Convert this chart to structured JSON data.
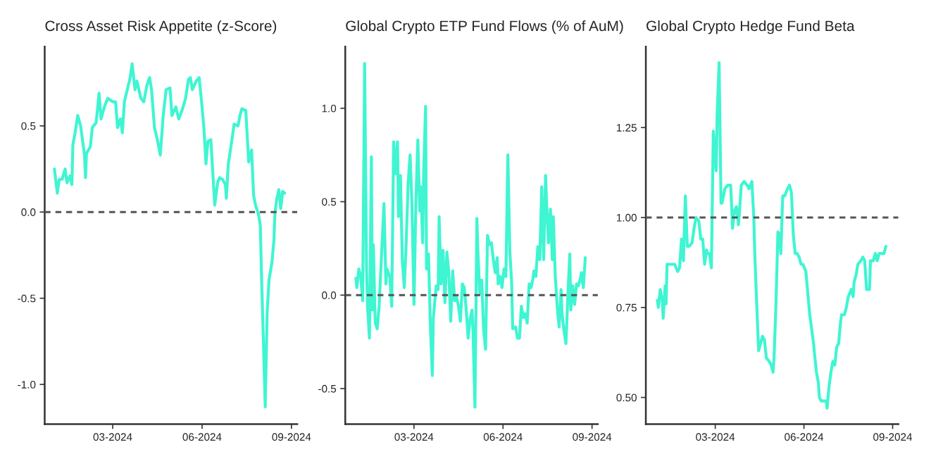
{
  "chart_data": [
    {
      "type": "line",
      "title": "Cross Asset Risk Appetite (z-Score)",
      "grid": false,
      "line_style": "solid",
      "marker": "none",
      "xlim": [
        "2023-12-22",
        "2024-09-07"
      ],
      "xticks": [
        {
          "value": "2024-03-01",
          "label": "03-2024"
        },
        {
          "value": "2024-06-01",
          "label": "06-2024"
        },
        {
          "value": "2024-09-01",
          "label": "09-2024"
        }
      ],
      "ylim": [
        -1.23,
        0.96
      ],
      "yticks": [
        {
          "value": -1.0,
          "label": "-1.0"
        },
        {
          "value": -0.5,
          "label": "-0.5"
        },
        {
          "value": 0.0,
          "label": "0.0"
        },
        {
          "value": 0.5,
          "label": "0.5"
        }
      ],
      "ref_lines": [
        {
          "axis": "y",
          "value": 0.0,
          "color": "#555555",
          "line_style": "dashed"
        }
      ],
      "x": [
        "2024-01-01",
        "2024-01-04",
        "2024-01-06",
        "2024-01-09",
        "2024-01-12",
        "2024-01-14",
        "2024-01-17",
        "2024-01-19",
        "2024-01-20",
        "2024-01-22",
        "2024-01-25",
        "2024-01-28",
        "2024-02-01",
        "2024-02-02",
        "2024-02-03",
        "2024-02-07",
        "2024-02-09",
        "2024-02-13",
        "2024-02-16",
        "2024-02-18",
        "2024-02-22",
        "2024-02-25",
        "2024-03-01",
        "2024-03-04",
        "2024-03-06",
        "2024-03-09",
        "2024-03-11",
        "2024-03-13",
        "2024-03-16",
        "2024-03-19",
        "2024-03-21",
        "2024-03-24",
        "2024-03-26",
        "2024-03-30",
        "2024-04-02",
        "2024-04-05",
        "2024-04-08",
        "2024-04-10",
        "2024-04-13",
        "2024-04-16",
        "2024-04-19",
        "2024-04-22",
        "2024-04-25",
        "2024-04-29",
        "2024-05-01",
        "2024-05-05",
        "2024-05-08",
        "2024-05-12",
        "2024-05-15",
        "2024-05-18",
        "2024-05-20",
        "2024-05-22",
        "2024-05-26",
        "2024-05-29",
        "2024-06-01",
        "2024-06-03",
        "2024-06-05",
        "2024-06-07",
        "2024-06-10",
        "2024-06-11",
        "2024-06-14",
        "2024-06-17",
        "2024-06-19",
        "2024-06-22",
        "2024-06-25",
        "2024-06-26",
        "2024-06-28",
        "2024-07-01",
        "2024-07-04",
        "2024-07-08",
        "2024-07-10",
        "2024-07-12",
        "2024-07-16",
        "2024-07-19",
        "2024-07-22",
        "2024-07-24",
        "2024-07-26",
        "2024-07-29",
        "2024-07-31",
        "2024-08-01",
        "2024-08-03",
        "2024-08-05",
        "2024-08-07",
        "2024-08-09",
        "2024-08-12",
        "2024-08-14",
        "2024-08-15",
        "2024-08-17",
        "2024-08-19",
        "2024-08-21",
        "2024-08-23",
        "2024-08-25"
      ],
      "series": [
        {
          "color": "#3ff5d2",
          "values": [
            0.25,
            0.11,
            0.19,
            0.19,
            0.25,
            0.17,
            0.21,
            0.16,
            0.39,
            0.45,
            0.56,
            0.5,
            0.33,
            0.2,
            0.34,
            0.38,
            0.49,
            0.52,
            0.69,
            0.54,
            0.62,
            0.66,
            0.64,
            0.64,
            0.49,
            0.54,
            0.46,
            0.64,
            0.71,
            0.78,
            0.86,
            0.71,
            0.76,
            0.66,
            0.64,
            0.73,
            0.78,
            0.71,
            0.49,
            0.42,
            0.33,
            0.56,
            0.71,
            0.72,
            0.56,
            0.61,
            0.54,
            0.6,
            0.66,
            0.77,
            0.78,
            0.71,
            0.76,
            0.78,
            0.61,
            0.48,
            0.28,
            0.41,
            0.42,
            0.33,
            0.04,
            0.17,
            0.2,
            0.19,
            0.16,
            0.08,
            0.28,
            0.39,
            0.51,
            0.5,
            0.56,
            0.6,
            0.59,
            0.29,
            0.36,
            0.1,
            0.04,
            -0.01,
            -0.08,
            -0.33,
            -0.72,
            -1.13,
            -0.58,
            -0.39,
            -0.29,
            -0.16,
            -0.01,
            0.08,
            0.13,
            0.02,
            0.12,
            0.11
          ]
        }
      ]
    },
    {
      "type": "line",
      "title": "Global Crypto ETP Fund Flows (% of AuM)",
      "grid": false,
      "line_style": "solid",
      "marker": "none",
      "xlim": [
        "2023-12-21",
        "2024-09-07"
      ],
      "xticks": [
        {
          "value": "2024-03-01",
          "label": "03-2024"
        },
        {
          "value": "2024-06-01",
          "label": "06-2024"
        },
        {
          "value": "2024-09-01",
          "label": "09-2024"
        }
      ],
      "ylim": [
        -0.69,
        1.33
      ],
      "yticks": [
        {
          "value": -0.5,
          "label": "-0.5"
        },
        {
          "value": 0.0,
          "label": "0.0"
        },
        {
          "value": 0.5,
          "label": "0.5"
        },
        {
          "value": 1.0,
          "label": "1.0"
        }
      ],
      "ref_lines": [
        {
          "axis": "y",
          "value": 0.0,
          "color": "#555555",
          "line_style": "dashed"
        }
      ],
      "x": [
        "2024-01-01",
        "2024-01-02",
        "2024-01-04",
        "2024-01-06",
        "2024-01-08",
        "2024-01-10",
        "2024-01-12",
        "2024-01-13",
        "2024-01-15",
        "2024-01-17",
        "2024-01-18",
        "2024-01-19",
        "2024-01-21",
        "2024-01-23",
        "2024-01-25",
        "2024-01-28",
        "2024-01-30",
        "2024-02-01",
        "2024-02-02",
        "2024-02-05",
        "2024-02-07",
        "2024-02-09",
        "2024-02-11",
        "2024-02-13",
        "2024-02-14",
        "2024-02-16",
        "2024-02-18",
        "2024-02-20",
        "2024-02-22",
        "2024-02-24",
        "2024-02-26",
        "2024-02-28",
        "2024-03-01",
        "2024-03-03",
        "2024-03-05",
        "2024-03-07",
        "2024-03-08",
        "2024-03-10",
        "2024-03-11",
        "2024-03-13",
        "2024-03-14",
        "2024-03-16",
        "2024-03-18",
        "2024-03-20",
        "2024-03-21",
        "2024-03-24",
        "2024-03-26",
        "2024-03-27",
        "2024-03-29",
        "2024-03-31",
        "2024-04-02",
        "2024-04-04",
        "2024-04-06",
        "2024-04-08",
        "2024-04-10",
        "2024-04-12",
        "2024-04-14",
        "2024-04-16",
        "2024-04-18",
        "2024-04-20",
        "2024-04-22",
        "2024-04-24",
        "2024-04-26",
        "2024-04-28",
        "2024-04-30",
        "2024-05-01",
        "2024-05-03",
        "2024-05-05",
        "2024-05-06",
        "2024-05-08",
        "2024-05-10",
        "2024-05-12",
        "2024-05-14",
        "2024-05-16",
        "2024-05-18",
        "2024-05-20",
        "2024-05-22",
        "2024-05-24",
        "2024-05-26",
        "2024-05-27",
        "2024-05-29",
        "2024-05-31",
        "2024-06-02",
        "2024-06-04",
        "2024-06-06",
        "2024-06-08",
        "2024-06-10",
        "2024-06-11",
        "2024-06-14",
        "2024-06-16",
        "2024-06-18",
        "2024-06-20",
        "2024-06-22",
        "2024-06-24",
        "2024-06-26",
        "2024-06-28",
        "2024-06-30",
        "2024-07-02",
        "2024-07-03",
        "2024-07-05",
        "2024-07-07",
        "2024-07-09",
        "2024-07-11",
        "2024-07-13",
        "2024-07-15",
        "2024-07-16",
        "2024-07-18",
        "2024-07-20",
        "2024-07-22",
        "2024-07-23",
        "2024-07-25",
        "2024-07-27",
        "2024-07-29",
        "2024-07-31",
        "2024-08-01",
        "2024-08-03",
        "2024-08-05",
        "2024-08-07",
        "2024-08-09",
        "2024-08-10",
        "2024-08-12",
        "2024-08-14",
        "2024-08-16",
        "2024-08-18",
        "2024-08-20",
        "2024-08-21",
        "2024-08-23",
        "2024-08-25"
      ],
      "series": [
        {
          "color": "#3ff5d2",
          "values": [
            0.09,
            0.04,
            0.14,
            0.1,
            -0.03,
            1.24,
            0.14,
            -0.06,
            -0.23,
            0.74,
            -0.08,
            0.27,
            -0.15,
            -0.18,
            -0.06,
            0.27,
            0.49,
            0.06,
            0.14,
            0.1,
            -0.06,
            0.82,
            0.65,
            0.82,
            0.42,
            0.64,
            0.18,
            0.04,
            0.29,
            0.6,
            0.75,
            0.47,
            -0.05,
            0.5,
            0.83,
            0.45,
            0.58,
            0.28,
            0.65,
            1.01,
            0.14,
            0.22,
            -0.17,
            -0.43,
            -0.12,
            0.05,
            0.03,
            0.42,
            0.06,
            0.24,
            -0.04,
            0.23,
            0.12,
            -0.14,
            0.13,
            -0.03,
            -0.01,
            -0.06,
            -0.14,
            0.06,
            0.04,
            -0.08,
            -0.23,
            -0.13,
            -0.08,
            -0.19,
            -0.6,
            0.41,
            0.24,
            0.01,
            0.08,
            -0.19,
            -0.29,
            0.32,
            0.27,
            0.28,
            0.19,
            0.12,
            0.2,
            0.06,
            0.1,
            0.04,
            0.14,
            0.1,
            0.75,
            0.24,
            0.06,
            -0.18,
            -0.17,
            -0.23,
            -0.23,
            -0.06,
            -0.12,
            -0.1,
            -0.15,
            0.06,
            0.04,
            0.09,
            0.13,
            0.1,
            0.26,
            0.19,
            0.58,
            0.19,
            0.64,
            0.5,
            0.28,
            0.46,
            0.19,
            0.42,
            0.1,
            -0.06,
            -0.17,
            0.03,
            -0.1,
            -0.19,
            -0.26,
            -0.01,
            0.22,
            -0.08,
            0.05,
            -0.05,
            0.06,
            0.05,
            0.09,
            0.12,
            0.04,
            0.2
          ]
        }
      ]
    },
    {
      "type": "line",
      "title": "Global Crypto Hedge Fund Beta",
      "grid": false,
      "line_style": "solid",
      "marker": "none",
      "xlim": [
        "2023-12-20",
        "2024-09-07"
      ],
      "xticks": [
        {
          "value": "2024-03-01",
          "label": "03-2024"
        },
        {
          "value": "2024-06-01",
          "label": "06-2024"
        },
        {
          "value": "2024-09-01",
          "label": "09-2024"
        }
      ],
      "ylim": [
        0.426,
        1.475
      ],
      "yticks": [
        {
          "value": 0.5,
          "label": "0.50"
        },
        {
          "value": 0.75,
          "label": "0.75"
        },
        {
          "value": 1.0,
          "label": "1.00"
        },
        {
          "value": 1.25,
          "label": "1.25"
        }
      ],
      "ref_lines": [
        {
          "axis": "y",
          "value": 1.0,
          "color": "#555555",
          "line_style": "dashed"
        }
      ],
      "x": [
        "2024-01-01",
        "2024-01-02",
        "2024-01-04",
        "2024-01-06",
        "2024-01-07",
        "2024-01-09",
        "2024-01-10",
        "2024-01-11",
        "2024-01-14",
        "2024-01-17",
        "2024-01-19",
        "2024-01-22",
        "2024-01-24",
        "2024-01-26",
        "2024-01-28",
        "2024-01-30",
        "2024-02-01",
        "2024-02-03",
        "2024-02-06",
        "2024-02-08",
        "2024-02-10",
        "2024-02-13",
        "2024-02-15",
        "2024-02-17",
        "2024-02-19",
        "2024-02-21",
        "2024-02-22",
        "2024-02-24",
        "2024-02-26",
        "2024-02-28",
        "2024-03-01",
        "2024-03-02",
        "2024-03-03",
        "2024-03-05",
        "2024-03-07",
        "2024-03-08",
        "2024-03-11",
        "2024-03-14",
        "2024-03-17",
        "2024-03-19",
        "2024-03-21",
        "2024-03-23",
        "2024-03-25",
        "2024-03-26",
        "2024-03-28",
        "2024-03-31",
        "2024-04-03",
        "2024-04-05",
        "2024-04-08",
        "2024-04-10",
        "2024-04-11",
        "2024-04-13",
        "2024-04-15",
        "2024-04-17",
        "2024-04-19",
        "2024-04-21",
        "2024-04-23",
        "2024-04-26",
        "2024-04-28",
        "2024-04-30",
        "2024-05-01",
        "2024-05-03",
        "2024-05-05",
        "2024-05-07",
        "2024-05-08",
        "2024-05-10",
        "2024-05-12",
        "2024-05-15",
        "2024-05-17",
        "2024-05-19",
        "2024-05-21",
        "2024-05-23",
        "2024-05-25",
        "2024-05-27",
        "2024-05-29",
        "2024-05-31",
        "2024-06-03",
        "2024-06-05",
        "2024-06-07",
        "2024-06-09",
        "2024-06-11",
        "2024-06-12",
        "2024-06-14",
        "2024-06-16",
        "2024-06-17",
        "2024-06-19",
        "2024-06-21",
        "2024-06-24",
        "2024-06-25",
        "2024-06-27",
        "2024-06-29",
        "2024-07-01",
        "2024-07-03",
        "2024-07-05",
        "2024-07-07",
        "2024-07-09",
        "2024-07-10",
        "2024-07-13",
        "2024-07-15",
        "2024-07-17",
        "2024-07-20",
        "2024-07-22",
        "2024-07-23",
        "2024-07-25",
        "2024-07-27",
        "2024-07-30",
        "2024-08-01",
        "2024-08-03",
        "2024-08-05",
        "2024-08-08",
        "2024-08-09",
        "2024-08-12",
        "2024-08-14",
        "2024-08-16",
        "2024-08-18",
        "2024-08-20",
        "2024-08-23",
        "2024-08-25"
      ],
      "series": [
        {
          "color": "#3ff5d2",
          "values": [
            0.77,
            0.75,
            0.8,
            0.77,
            0.72,
            0.81,
            0.76,
            0.87,
            0.87,
            0.87,
            0.87,
            0.85,
            0.86,
            0.94,
            0.88,
            1.06,
            0.92,
            0.92,
            0.93,
            0.97,
            1.0,
            0.99,
            0.94,
            0.94,
            0.87,
            0.91,
            0.9,
            0.9,
            0.86,
            1.24,
            1.16,
            1.13,
            1.29,
            1.43,
            1.04,
            1.04,
            1.08,
            1.09,
            1.09,
            0.97,
            1.02,
            1.03,
            0.98,
            1.01,
            1.09,
            1.1,
            1.09,
            1.08,
            1.1,
            1.0,
            0.9,
            0.76,
            0.63,
            0.65,
            0.67,
            0.66,
            0.61,
            0.6,
            0.59,
            0.57,
            0.61,
            0.76,
            0.96,
            0.95,
            0.9,
            1.06,
            1.06,
            1.08,
            1.09,
            1.07,
            0.95,
            0.9,
            0.9,
            0.89,
            0.87,
            0.87,
            0.85,
            0.79,
            0.73,
            0.69,
            0.65,
            0.62,
            0.57,
            0.54,
            0.5,
            0.49,
            0.49,
            0.49,
            0.47,
            0.53,
            0.57,
            0.6,
            0.59,
            0.64,
            0.65,
            0.71,
            0.73,
            0.73,
            0.75,
            0.78,
            0.8,
            0.78,
            0.82,
            0.84,
            0.87,
            0.88,
            0.89,
            0.88,
            0.8,
            0.8,
            0.88,
            0.88,
            0.9,
            0.88,
            0.9,
            0.9,
            0.9,
            0.92
          ]
        }
      ]
    }
  ]
}
